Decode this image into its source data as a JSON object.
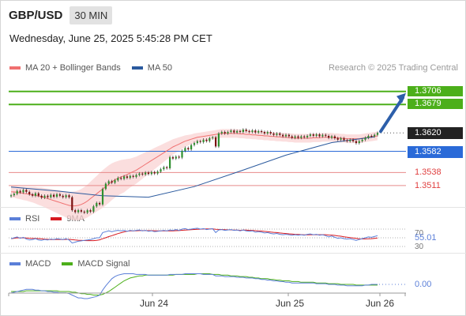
{
  "header": {
    "symbol": "GBP/USD",
    "timeframe": "30 MIN",
    "datetime": "Wednesday, June 25, 2025 5:45:28 PM CET"
  },
  "legend": {
    "ma20_label": "MA 20 + Bollinger Bands",
    "ma50_label": "MA 50",
    "ma20_color": "#f07070",
    "ma50_color": "#2b5a9e",
    "credit": "Research © 2025 Trading Central"
  },
  "rsi_legend": {
    "rsi_label": "RSI",
    "ma_label": "9MA",
    "rsi_color": "#5b7fd8",
    "ma_color": "#d71920"
  },
  "macd_legend": {
    "macd_label": "MACD",
    "signal_label": "MACD Signal",
    "macd_color": "#5b7fd8",
    "signal_color": "#4caf1a"
  },
  "chart_data": [
    {
      "type": "line",
      "name": "price",
      "x_ticks": [
        "Jun 24",
        "Jun 25",
        "Jun 26"
      ],
      "y_range": [
        1.347,
        1.3735
      ],
      "levels": [
        {
          "label": "1.3706",
          "value": 1.3706,
          "kind": "resistance",
          "color": "#4caf1a"
        },
        {
          "label": "1.3679",
          "value": 1.3679,
          "kind": "resistance",
          "color": "#4caf1a"
        },
        {
          "label": "1.3620",
          "value": 1.362,
          "kind": "last",
          "color": "#222222"
        },
        {
          "label": "1.3582",
          "value": 1.3582,
          "kind": "pivot",
          "color": "#2a6ad8"
        },
        {
          "label": "1.3538",
          "value": 1.3538,
          "kind": "support",
          "color": "#e04040"
        },
        {
          "label": "1.3511",
          "value": 1.3511,
          "kind": "support",
          "color": "#e04040"
        }
      ],
      "close": [
        1.3491,
        1.3494,
        1.35,
        1.3497,
        1.3502,
        1.3498,
        1.3493,
        1.349,
        1.3495,
        1.349,
        1.3486,
        1.349,
        1.3487,
        1.3492,
        1.3488,
        1.3493,
        1.349,
        1.3487,
        1.3491,
        1.3487,
        1.346,
        1.3456,
        1.346,
        1.3457,
        1.3455,
        1.346,
        1.3457,
        1.3468,
        1.3475,
        1.3472,
        1.3504,
        1.3515,
        1.352,
        1.3517,
        1.3522,
        1.3527,
        1.3525,
        1.353,
        1.3527,
        1.3531,
        1.3529,
        1.3533,
        1.3536,
        1.3534,
        1.3538,
        1.3535,
        1.3539,
        1.3536,
        1.354,
        1.3545,
        1.3549,
        1.3547,
        1.357,
        1.3567,
        1.3571,
        1.3569,
        1.3583,
        1.3589,
        1.3586,
        1.3595,
        1.3599,
        1.3603,
        1.3601,
        1.3606,
        1.3603,
        1.3609,
        1.3611,
        1.3592,
        1.3619,
        1.3622,
        1.3619,
        1.3622,
        1.3625,
        1.3621,
        1.3624,
        1.3622,
        1.3627,
        1.3624,
        1.3622,
        1.3625,
        1.3621,
        1.3624,
        1.3622,
        1.3619,
        1.3622,
        1.3619,
        1.3616,
        1.3619,
        1.3616,
        1.3613,
        1.3616,
        1.3613,
        1.361,
        1.3613,
        1.361,
        1.3613,
        1.3611,
        1.3614,
        1.3617,
        1.3614,
        1.3617,
        1.3613,
        1.3616,
        1.3614,
        1.361,
        1.3613,
        1.3609,
        1.3606,
        1.3609,
        1.3605,
        1.3603,
        1.3606,
        1.3603,
        1.3599,
        1.3603,
        1.3606,
        1.361,
        1.3614,
        1.3613,
        1.3616,
        1.362
      ],
      "ma20": [
        1.3498,
        1.3498,
        1.3497,
        1.3496,
        1.3495,
        1.3494,
        1.3493,
        1.3492,
        1.3491,
        1.3489,
        1.3488,
        1.3486,
        1.3484,
        1.3482,
        1.348,
        1.3478,
        1.3476,
        1.3474,
        1.3472,
        1.347,
        1.3469,
        1.3469,
        1.347,
        1.3472,
        1.3475,
        1.3479,
        1.3484,
        1.3489,
        1.3494,
        1.3499,
        1.3504,
        1.3509,
        1.3514,
        1.3519,
        1.3523,
        1.3526,
        1.3529,
        1.3531,
        1.3534,
        1.3537,
        1.354,
        1.3543,
        1.3547,
        1.3551,
        1.3555,
        1.3559,
        1.3563,
        1.3567,
        1.3571,
        1.3575,
        1.3579,
        1.3583,
        1.3587,
        1.3591,
        1.3594,
        1.3597,
        1.36,
        1.3603,
        1.3605,
        1.3607,
        1.3609,
        1.3611,
        1.3612,
        1.3613,
        1.3614,
        1.3615,
        1.3616,
        1.3617,
        1.3618,
        1.3619,
        1.3619,
        1.3619,
        1.3619,
        1.3619,
        1.3619,
        1.3618,
        1.3618,
        1.3617,
        1.3617,
        1.3616,
        1.3616,
        1.3615,
        1.3615,
        1.3614,
        1.3614,
        1.3613,
        1.3613,
        1.3612,
        1.3612,
        1.3611,
        1.3611,
        1.361,
        1.361,
        1.3609,
        1.3609,
        1.3609,
        1.3609,
        1.3609,
        1.3609,
        1.361,
        1.361,
        1.361,
        1.3611,
        1.3611,
        1.3611,
        1.3611,
        1.361,
        1.361,
        1.3609,
        1.3609,
        1.3608,
        1.3608,
        1.3608,
        1.3608,
        1.3608,
        1.3609,
        1.361,
        1.3611,
        1.3612,
        1.3613,
        1.3614
      ],
      "bb_width": [
        0.0012,
        0.0012,
        0.0013,
        0.0013,
        0.0014,
        0.0014,
        0.0015,
        0.0016,
        0.0017,
        0.0018,
        0.0019,
        0.002,
        0.0021,
        0.0022,
        0.0023,
        0.0024,
        0.0025,
        0.0026,
        0.0027,
        0.0028,
        0.0029,
        0.003,
        0.0031,
        0.0032,
        0.0033,
        0.0034,
        0.0035,
        0.0036,
        0.0037,
        0.0038,
        0.0039,
        0.0039,
        0.0039,
        0.0038,
        0.0037,
        0.0036,
        0.0035,
        0.0034,
        0.0032,
        0.003,
        0.0029,
        0.0028,
        0.0027,
        0.0026,
        0.0025,
        0.0024,
        0.0023,
        0.0022,
        0.0021,
        0.002,
        0.0019,
        0.0018,
        0.0017,
        0.0016,
        0.0015,
        0.0014,
        0.0013,
        0.0012,
        0.0011,
        0.001,
        0.001,
        0.0009,
        0.0009,
        0.0009,
        0.0009,
        0.0009,
        0.0009,
        0.0009,
        0.0009,
        0.0009,
        0.0009,
        0.0009,
        0.0009,
        0.0009,
        0.0009,
        0.0009,
        0.0009,
        0.0009,
        0.0009,
        0.0009,
        0.0009,
        0.0009,
        0.0009,
        0.0009,
        0.0009,
        0.0009,
        0.0009,
        0.0009,
        0.0009,
        0.0009,
        0.0009,
        0.0009,
        0.0009,
        0.0009,
        0.0009,
        0.0009,
        0.0009,
        0.0009,
        0.0009,
        0.0009,
        0.0009,
        0.0009,
        0.0009,
        0.0009,
        0.0009,
        0.0009,
        0.0009,
        0.0009,
        0.0009,
        0.0009,
        0.0009,
        0.0009,
        0.0009,
        0.0009,
        0.0009,
        0.0009,
        0.0009,
        0.0009,
        0.0009,
        0.0009,
        0.0009
      ],
      "ma50_points": [
        [
          0,
          1.3508
        ],
        [
          15,
          1.35
        ],
        [
          30,
          1.349
        ],
        [
          45,
          1.3487
        ],
        [
          60,
          1.3509
        ],
        [
          75,
          1.3541
        ],
        [
          90,
          1.3574
        ],
        [
          105,
          1.36
        ],
        [
          119,
          1.3612
        ]
      ]
    },
    {
      "type": "line",
      "name": "RSI",
      "y_ticks": [
        70,
        50,
        30
      ],
      "last_value": "55.01",
      "rsi": [
        48,
        50,
        52,
        49,
        51,
        47,
        45,
        46,
        48,
        45,
        44,
        46,
        45,
        47,
        46,
        48,
        47,
        46,
        48,
        45,
        38,
        40,
        42,
        43,
        44,
        45,
        46,
        48,
        50,
        50,
        62,
        64,
        66,
        64,
        66,
        67,
        66,
        67,
        65,
        67,
        66,
        67,
        68,
        66,
        67,
        65,
        66,
        64,
        65,
        66,
        67,
        66,
        68,
        67,
        69,
        67,
        70,
        71,
        69,
        70,
        71,
        72,
        70,
        71,
        69,
        70,
        71,
        62,
        68,
        69,
        67,
        68,
        69,
        67,
        68,
        66,
        68,
        66,
        65,
        66,
        63,
        64,
        63,
        61,
        62,
        60,
        59,
        60,
        58,
        57,
        58,
        57,
        56,
        57,
        56,
        57,
        56,
        58,
        59,
        57,
        58,
        56,
        57,
        55,
        52,
        54,
        51,
        49,
        50,
        48,
        47,
        48,
        46,
        44,
        46,
        48,
        50,
        52,
        51,
        53,
        55
      ]
    },
    {
      "type": "line",
      "name": "MACD",
      "zero_label": "0.00",
      "macd": [
        -12,
        -11,
        -10,
        -9,
        -8,
        -7,
        -7,
        -7,
        -8,
        -8,
        -9,
        -9,
        -10,
        -10,
        -11,
        -11,
        -12,
        -12,
        -12,
        -13,
        -15,
        -17,
        -19,
        -19,
        -20,
        -20,
        -19,
        -18,
        -17,
        -15,
        -8,
        -2,
        3,
        8,
        11,
        13,
        14,
        15,
        15,
        15,
        15,
        14,
        14,
        14,
        14,
        13,
        13,
        13,
        13,
        13,
        13,
        13,
        14,
        14,
        14,
        14,
        14,
        15,
        15,
        15,
        15,
        15,
        15,
        14,
        14,
        14,
        14,
        12,
        12,
        12,
        11,
        11,
        11,
        11,
        10,
        10,
        10,
        9,
        9,
        9,
        8,
        8,
        7,
        7,
        6,
        6,
        5,
        5,
        4,
        4,
        3,
        3,
        2,
        2,
        2,
        2,
        2,
        2,
        2,
        2,
        1,
        1,
        1,
        1,
        0,
        0,
        0,
        -1,
        -1,
        -1,
        -2,
        -2,
        -2,
        -2,
        -2,
        -2,
        -1,
        -1,
        0,
        0,
        0
      ],
      "signal": [
        -10,
        -10,
        -10,
        -10,
        -10,
        -9,
        -9,
        -9,
        -9,
        -9,
        -9,
        -9,
        -9,
        -9,
        -9,
        -9,
        -10,
        -10,
        -10,
        -10,
        -11,
        -11,
        -12,
        -13,
        -13,
        -14,
        -14,
        -15,
        -15,
        -15,
        -14,
        -12,
        -10,
        -7,
        -4,
        -1,
        2,
        5,
        7,
        9,
        10,
        11,
        12,
        12,
        13,
        13,
        13,
        13,
        13,
        13,
        13,
        13,
        13,
        13,
        14,
        14,
        14,
        14,
        14,
        14,
        14,
        15,
        15,
        15,
        15,
        15,
        14,
        14,
        14,
        13,
        13,
        13,
        12,
        12,
        12,
        11,
        11,
        11,
        10,
        10,
        9,
        9,
        8,
        8,
        8,
        7,
        7,
        6,
        6,
        5,
        5,
        5,
        4,
        4,
        4,
        3,
        3,
        3,
        3,
        3,
        2,
        2,
        2,
        2,
        1,
        1,
        1,
        1,
        0,
        0,
        0,
        0,
        0,
        -1,
        -1,
        -1,
        -1,
        -1,
        -1,
        -1,
        -1
      ]
    }
  ]
}
